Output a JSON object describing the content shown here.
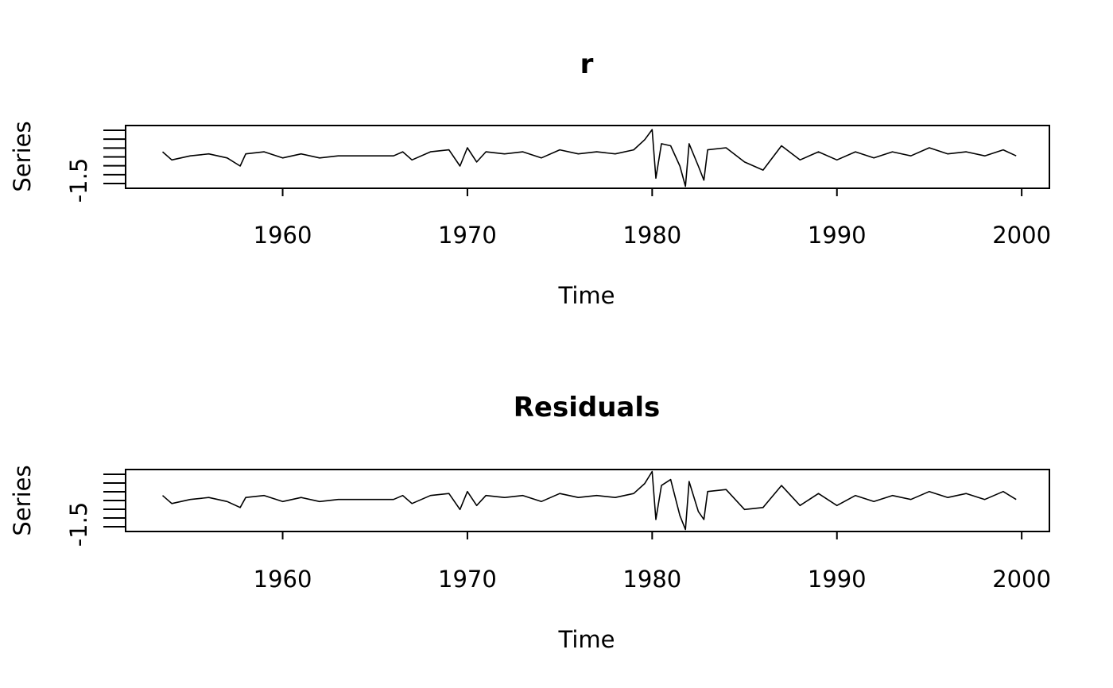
{
  "chart_data": [
    {
      "type": "line",
      "title": "r",
      "xlabel": "Time",
      "ylabel": "Series",
      "xlim": [
        1951.5,
        2001.5
      ],
      "ylim": [
        -1.6,
        1.5
      ],
      "x_ticks": [
        "1960",
        "1970",
        "1980",
        "1990",
        "2000"
      ],
      "y_tick_labels": [
        "-1.5"
      ],
      "grid": false,
      "series": [
        {
          "x": [
            1953.5,
            1954,
            1955,
            1956,
            1957,
            1957.7,
            1958,
            1959,
            1960,
            1961,
            1962,
            1963,
            1964,
            1965,
            1966,
            1966.5,
            1967,
            1968,
            1969,
            1969.6,
            1970,
            1970.5,
            1971,
            1972,
            1973,
            1974,
            1975,
            1976,
            1977,
            1978,
            1979,
            1979.6,
            1980,
            1980.2,
            1980.5,
            1981,
            1981.5,
            1981.8,
            1982,
            1982.5,
            1982.8,
            1983,
            1984,
            1985,
            1986,
            1987,
            1988,
            1989,
            1990,
            1991,
            1992,
            1993,
            1994,
            1995,
            1996,
            1997,
            1998,
            1999,
            1999.7
          ],
          "y": [
            0.2,
            -0.2,
            0.0,
            0.1,
            -0.1,
            -0.5,
            0.1,
            0.2,
            -0.1,
            0.1,
            -0.1,
            0.0,
            0.0,
            0.0,
            0.0,
            0.2,
            -0.2,
            0.2,
            0.3,
            -0.5,
            0.4,
            -0.3,
            0.2,
            0.1,
            0.2,
            -0.1,
            0.3,
            0.1,
            0.2,
            0.1,
            0.3,
            0.8,
            1.3,
            -1.1,
            0.6,
            0.5,
            -0.5,
            -1.5,
            0.6,
            -0.5,
            -1.2,
            0.3,
            0.4,
            -0.3,
            -0.7,
            0.5,
            -0.2,
            0.2,
            -0.2,
            0.2,
            -0.1,
            0.2,
            0.0,
            0.4,
            0.1,
            0.2,
            0.0,
            0.3,
            0.0
          ]
        }
      ]
    },
    {
      "type": "line",
      "title": "Residuals",
      "xlabel": "Time",
      "ylabel": "Series",
      "xlim": [
        1951.5,
        2001.5
      ],
      "ylim": [
        -1.6,
        1.5
      ],
      "x_ticks": [
        "1960",
        "1970",
        "1980",
        "1990",
        "2000"
      ],
      "y_tick_labels": [
        "-1.5"
      ],
      "grid": false,
      "series": [
        {
          "x": [
            1953.5,
            1954,
            1955,
            1956,
            1957,
            1957.7,
            1958,
            1959,
            1960,
            1961,
            1962,
            1963,
            1964,
            1965,
            1966,
            1966.5,
            1967,
            1968,
            1969,
            1969.6,
            1970,
            1970.5,
            1971,
            1972,
            1973,
            1974,
            1975,
            1976,
            1977,
            1978,
            1979,
            1979.6,
            1980,
            1980.2,
            1980.5,
            1981,
            1981.5,
            1981.8,
            1982,
            1982.5,
            1982.8,
            1983,
            1984,
            1985,
            1986,
            1987,
            1988,
            1989,
            1990,
            1991,
            1992,
            1993,
            1994,
            1995,
            1996,
            1997,
            1998,
            1999,
            1999.7
          ],
          "y": [
            0.2,
            -0.2,
            0.0,
            0.1,
            -0.1,
            -0.4,
            0.1,
            0.2,
            -0.1,
            0.1,
            -0.1,
            0.0,
            0.0,
            0.0,
            0.0,
            0.2,
            -0.2,
            0.2,
            0.3,
            -0.5,
            0.4,
            -0.3,
            0.2,
            0.1,
            0.2,
            -0.1,
            0.3,
            0.1,
            0.2,
            0.1,
            0.3,
            0.8,
            1.4,
            -1.0,
            0.7,
            1.0,
            -0.8,
            -1.5,
            0.9,
            -0.6,
            -1.0,
            0.4,
            0.5,
            -0.5,
            -0.4,
            0.7,
            -0.3,
            0.3,
            -0.3,
            0.2,
            -0.1,
            0.2,
            0.0,
            0.4,
            0.1,
            0.3,
            0.0,
            0.4,
            0.0
          ]
        }
      ]
    }
  ]
}
